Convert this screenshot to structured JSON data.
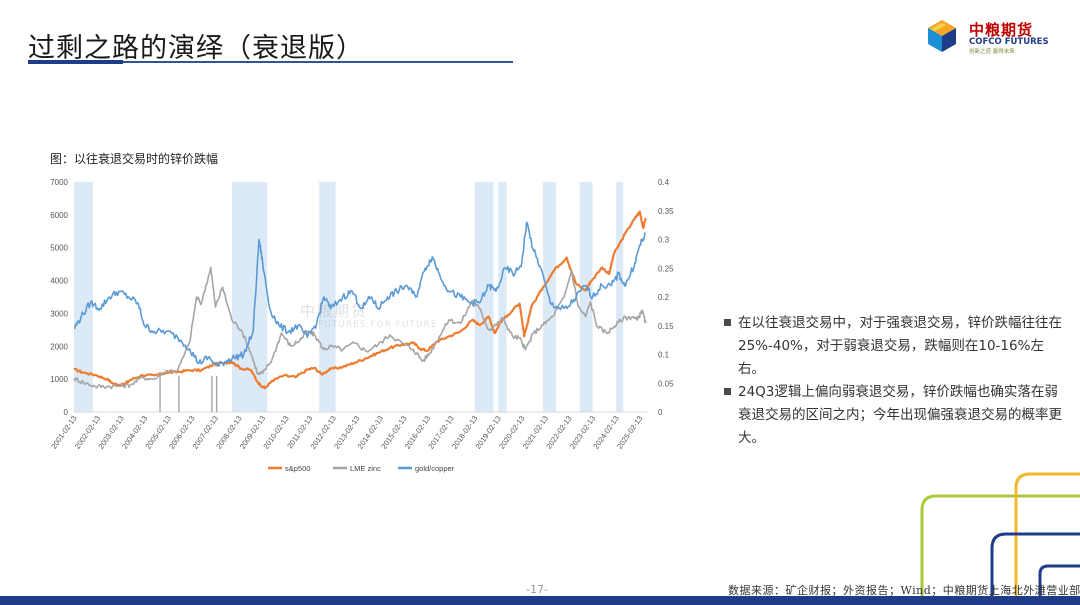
{
  "header": {
    "title": "过剩之路的演绎（衰退版）"
  },
  "logo": {
    "cn": "中粮期货",
    "en": "COFCO FUTURES",
    "tagline": "创新之道 赢得未来"
  },
  "watermark": {
    "cn": "中粮期货",
    "en": "FUTURES FOR FUTURE"
  },
  "chart_caption": "图：以往衰退交易时的锌价跌幅",
  "chart_data": {
    "type": "line",
    "x_tick_labels": [
      "2001-02-13",
      "2002-02-13",
      "2003-02-13",
      "2004-02-13",
      "2005-02-13",
      "2006-02-13",
      "2007-02-13",
      "2008-02-13",
      "2009-02-13",
      "2010-02-13",
      "2011-02-13",
      "2012-02-13",
      "2013-02-13",
      "2014-02-13",
      "2015-02-13",
      "2016-02-13",
      "2017-02-13",
      "2018-02-13",
      "2019-02-13",
      "2020-02-13",
      "2021-02-13",
      "2022-02-13",
      "2023-02-13",
      "2024-02-13",
      "2025-02-13"
    ],
    "y_left": {
      "ticks": [
        0,
        1000,
        2000,
        3000,
        4000,
        5000,
        6000,
        7000
      ],
      "ylim": [
        0,
        7000
      ]
    },
    "y_right": {
      "ticks": [
        0,
        0.05,
        0.1,
        0.15,
        0.2,
        0.25,
        0.3,
        0.35,
        0.4
      ],
      "ylim": [
        0,
        0.4
      ]
    },
    "recession_shading_years": [
      [
        2001.1,
        2001.9
      ],
      [
        2007.8,
        2009.3
      ],
      [
        2011.5,
        2012.2
      ],
      [
        2018.1,
        2018.9
      ],
      [
        2019.1,
        2019.45
      ],
      [
        2021.0,
        2021.55
      ],
      [
        2022.55,
        2023.1
      ],
      [
        2024.1,
        2024.4
      ]
    ],
    "series": [
      {
        "name": "s&p500",
        "axis": "left",
        "color": "#ed7d31",
        "points": [
          [
            2001.1,
            1300
          ],
          [
            2001.5,
            1200
          ],
          [
            2002.0,
            1130
          ],
          [
            2002.5,
            1000
          ],
          [
            2002.8,
            850
          ],
          [
            2003.2,
            830
          ],
          [
            2003.5,
            980
          ],
          [
            2004.0,
            1120
          ],
          [
            2004.5,
            1110
          ],
          [
            2005.0,
            1190
          ],
          [
            2005.5,
            1220
          ],
          [
            2006.0,
            1270
          ],
          [
            2006.5,
            1270
          ],
          [
            2007.0,
            1440
          ],
          [
            2007.5,
            1500
          ],
          [
            2007.8,
            1520
          ],
          [
            2008.2,
            1320
          ],
          [
            2008.6,
            1280
          ],
          [
            2008.9,
            900
          ],
          [
            2009.2,
            720
          ],
          [
            2009.5,
            950
          ],
          [
            2010.0,
            1110
          ],
          [
            2010.5,
            1060
          ],
          [
            2011.0,
            1290
          ],
          [
            2011.3,
            1340
          ],
          [
            2011.6,
            1150
          ],
          [
            2012.0,
            1310
          ],
          [
            2012.5,
            1370
          ],
          [
            2013.0,
            1500
          ],
          [
            2013.5,
            1640
          ],
          [
            2014.0,
            1800
          ],
          [
            2014.5,
            1950
          ],
          [
            2015.0,
            2050
          ],
          [
            2015.5,
            2100
          ],
          [
            2015.8,
            1920
          ],
          [
            2016.1,
            1870
          ],
          [
            2016.5,
            2150
          ],
          [
            2017.0,
            2300
          ],
          [
            2017.5,
            2450
          ],
          [
            2018.0,
            2800
          ],
          [
            2018.3,
            2650
          ],
          [
            2018.7,
            2900
          ],
          [
            2018.95,
            2400
          ],
          [
            2019.2,
            2750
          ],
          [
            2019.5,
            2950
          ],
          [
            2020.0,
            3300
          ],
          [
            2020.2,
            2300
          ],
          [
            2020.5,
            3200
          ],
          [
            2021.0,
            3800
          ],
          [
            2021.5,
            4350
          ],
          [
            2022.0,
            4700
          ],
          [
            2022.4,
            3900
          ],
          [
            2022.8,
            3700
          ],
          [
            2023.0,
            3950
          ],
          [
            2023.5,
            4400
          ],
          [
            2023.8,
            4200
          ],
          [
            2024.0,
            4800
          ],
          [
            2024.5,
            5450
          ],
          [
            2024.9,
            5900
          ],
          [
            2025.1,
            6100
          ],
          [
            2025.25,
            5600
          ],
          [
            2025.35,
            5900
          ]
        ]
      },
      {
        "name": "LME zinc",
        "axis": "left",
        "color": "#a5a5a5",
        "points": [
          [
            2001.1,
            1020
          ],
          [
            2001.5,
            900
          ],
          [
            2002.0,
            780
          ],
          [
            2002.5,
            780
          ],
          [
            2003.0,
            790
          ],
          [
            2003.5,
            830
          ],
          [
            2004.0,
            1050
          ],
          [
            2004.5,
            1000
          ],
          [
            2005.0,
            1250
          ],
          [
            2005.5,
            1270
          ],
          [
            2006.0,
            2100
          ],
          [
            2006.3,
            3500
          ],
          [
            2006.5,
            3300
          ],
          [
            2006.9,
            4400
          ],
          [
            2007.1,
            3200
          ],
          [
            2007.4,
            3800
          ],
          [
            2007.8,
            2800
          ],
          [
            2008.2,
            2500
          ],
          [
            2008.6,
            1800
          ],
          [
            2008.9,
            1150
          ],
          [
            2009.1,
            1180
          ],
          [
            2009.5,
            1600
          ],
          [
            2009.9,
            2400
          ],
          [
            2010.3,
            2000
          ],
          [
            2010.7,
            2200
          ],
          [
            2011.0,
            2450
          ],
          [
            2011.3,
            2350
          ],
          [
            2011.7,
            1900
          ],
          [
            2012.0,
            2000
          ],
          [
            2012.5,
            1900
          ],
          [
            2013.0,
            2100
          ],
          [
            2013.5,
            1850
          ],
          [
            2014.0,
            2050
          ],
          [
            2014.5,
            2350
          ],
          [
            2015.0,
            2100
          ],
          [
            2015.5,
            1900
          ],
          [
            2015.9,
            1550
          ],
          [
            2016.2,
            1800
          ],
          [
            2016.6,
            2300
          ],
          [
            2017.0,
            2800
          ],
          [
            2017.5,
            2700
          ],
          [
            2018.0,
            3400
          ],
          [
            2018.3,
            3150
          ],
          [
            2018.7,
            2500
          ],
          [
            2019.0,
            2650
          ],
          [
            2019.3,
            2850
          ],
          [
            2019.7,
            2300
          ],
          [
            2020.0,
            2250
          ],
          [
            2020.25,
            1900
          ],
          [
            2020.6,
            2400
          ],
          [
            2021.0,
            2650
          ],
          [
            2021.4,
            2900
          ],
          [
            2021.9,
            3500
          ],
          [
            2022.2,
            4300
          ],
          [
            2022.5,
            3200
          ],
          [
            2022.8,
            2900
          ],
          [
            2023.0,
            3350
          ],
          [
            2023.3,
            2600
          ],
          [
            2023.7,
            2400
          ],
          [
            2024.0,
            2600
          ],
          [
            2024.4,
            2850
          ],
          [
            2024.8,
            2900
          ],
          [
            2025.0,
            2800
          ],
          [
            2025.2,
            3100
          ],
          [
            2025.35,
            2700
          ]
        ]
      },
      {
        "name": "gold/copper",
        "axis": "right",
        "color": "#5b9bd5",
        "points": [
          [
            2001.1,
            0.145
          ],
          [
            2001.4,
            0.165
          ],
          [
            2001.8,
            0.19
          ],
          [
            2002.2,
            0.18
          ],
          [
            2002.6,
            0.2
          ],
          [
            2003.0,
            0.21
          ],
          [
            2003.4,
            0.2
          ],
          [
            2003.8,
            0.19
          ],
          [
            2004.1,
            0.15
          ],
          [
            2004.5,
            0.14
          ],
          [
            2005.0,
            0.14
          ],
          [
            2005.5,
            0.13
          ],
          [
            2006.0,
            0.11
          ],
          [
            2006.4,
            0.085
          ],
          [
            2006.8,
            0.095
          ],
          [
            2007.2,
            0.08
          ],
          [
            2007.6,
            0.09
          ],
          [
            2007.9,
            0.095
          ],
          [
            2008.3,
            0.1
          ],
          [
            2008.7,
            0.14
          ],
          [
            2008.95,
            0.3
          ],
          [
            2009.1,
            0.26
          ],
          [
            2009.4,
            0.18
          ],
          [
            2009.8,
            0.15
          ],
          [
            2010.2,
            0.14
          ],
          [
            2010.6,
            0.15
          ],
          [
            2011.0,
            0.13
          ],
          [
            2011.4,
            0.155
          ],
          [
            2011.7,
            0.2
          ],
          [
            2012.0,
            0.18
          ],
          [
            2012.5,
            0.2
          ],
          [
            2012.9,
            0.21
          ],
          [
            2013.3,
            0.18
          ],
          [
            2013.7,
            0.2
          ],
          [
            2014.0,
            0.18
          ],
          [
            2014.4,
            0.2
          ],
          [
            2014.8,
            0.21
          ],
          [
            2015.2,
            0.22
          ],
          [
            2015.6,
            0.2
          ],
          [
            2016.0,
            0.25
          ],
          [
            2016.3,
            0.27
          ],
          [
            2016.6,
            0.24
          ],
          [
            2017.0,
            0.21
          ],
          [
            2017.5,
            0.2
          ],
          [
            2017.9,
            0.19
          ],
          [
            2018.3,
            0.19
          ],
          [
            2018.7,
            0.22
          ],
          [
            2019.0,
            0.21
          ],
          [
            2019.4,
            0.25
          ],
          [
            2019.8,
            0.24
          ],
          [
            2020.1,
            0.26
          ],
          [
            2020.3,
            0.33
          ],
          [
            2020.6,
            0.28
          ],
          [
            2020.9,
            0.25
          ],
          [
            2021.3,
            0.19
          ],
          [
            2021.7,
            0.18
          ],
          [
            2022.0,
            0.18
          ],
          [
            2022.4,
            0.2
          ],
          [
            2022.8,
            0.22
          ],
          [
            2023.1,
            0.2
          ],
          [
            2023.5,
            0.22
          ],
          [
            2023.9,
            0.22
          ],
          [
            2024.2,
            0.24
          ],
          [
            2024.5,
            0.22
          ],
          [
            2024.9,
            0.26
          ],
          [
            2025.1,
            0.29
          ],
          [
            2025.35,
            0.31
          ]
        ]
      }
    ]
  },
  "notes": [
    "在以往衰退交易中，对于强衰退交易，锌价跌幅往往在25%-40%，对于弱衰退交易，跌幅则在10-16%左右。",
    "24Q3逻辑上偏向弱衰退交易，锌价跌幅也确实落在弱衰退交易的区间之内；今年出现偏强衰退交易的概率更大。"
  ],
  "footer": {
    "page_number": "-17-",
    "source": "数据来源：矿企财报；外资报告；Wind；中粮期货上海北外滩营业部"
  },
  "colors": {
    "brand_blue": "#1f3c88",
    "shade": "#dce9f6",
    "deco_green": "#a9c93c",
    "deco_yellow": "#f0b92c"
  }
}
